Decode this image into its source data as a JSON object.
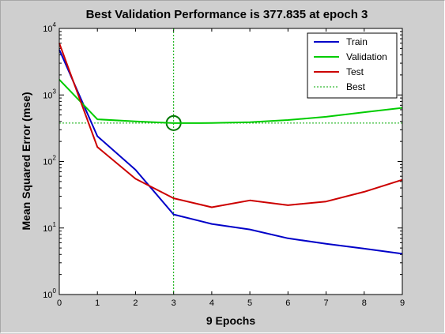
{
  "chart_data": {
    "type": "line",
    "title": "Best Validation Performance is 377.835 at epoch 3",
    "xlabel": "9 Epochs",
    "ylabel": "Mean Squared Error  (mse)",
    "y_scale": "log",
    "xlim": [
      0,
      9
    ],
    "ylim": [
      1,
      10000
    ],
    "x_ticks": [
      "0",
      "1",
      "2",
      "3",
      "4",
      "5",
      "6",
      "7",
      "8",
      "9"
    ],
    "y_ticks": [
      {
        "value": 1,
        "base": "10",
        "exp": "0"
      },
      {
        "value": 10,
        "base": "10",
        "exp": "1"
      },
      {
        "value": 100,
        "base": "10",
        "exp": "2"
      },
      {
        "value": 1000,
        "base": "10",
        "exp": "3"
      },
      {
        "value": 10000,
        "base": "10",
        "exp": "4"
      }
    ],
    "grid": false,
    "legend_position": "top-right",
    "x": [
      0,
      1,
      2,
      3,
      4,
      5,
      6,
      7,
      8,
      9
    ],
    "series": [
      {
        "name": "Train",
        "color": "#0000c8",
        "dash": "solid",
        "values": [
          4800,
          240,
          75,
          16,
          11.5,
          9.5,
          7,
          5.8,
          4.9,
          4.1
        ]
      },
      {
        "name": "Validation",
        "color": "#00cc00",
        "dash": "solid",
        "values": [
          1700,
          430,
          400,
          377.835,
          378,
          390,
          420,
          470,
          550,
          640
        ]
      },
      {
        "name": "Test",
        "color": "#cc0000",
        "dash": "solid",
        "values": [
          6000,
          165,
          55,
          28,
          20.5,
          26,
          22,
          25,
          35,
          53
        ]
      }
    ],
    "best": {
      "name": "Best",
      "epoch": 3,
      "value": 377.835,
      "color": "#00aa00",
      "dash": "dotted"
    }
  }
}
